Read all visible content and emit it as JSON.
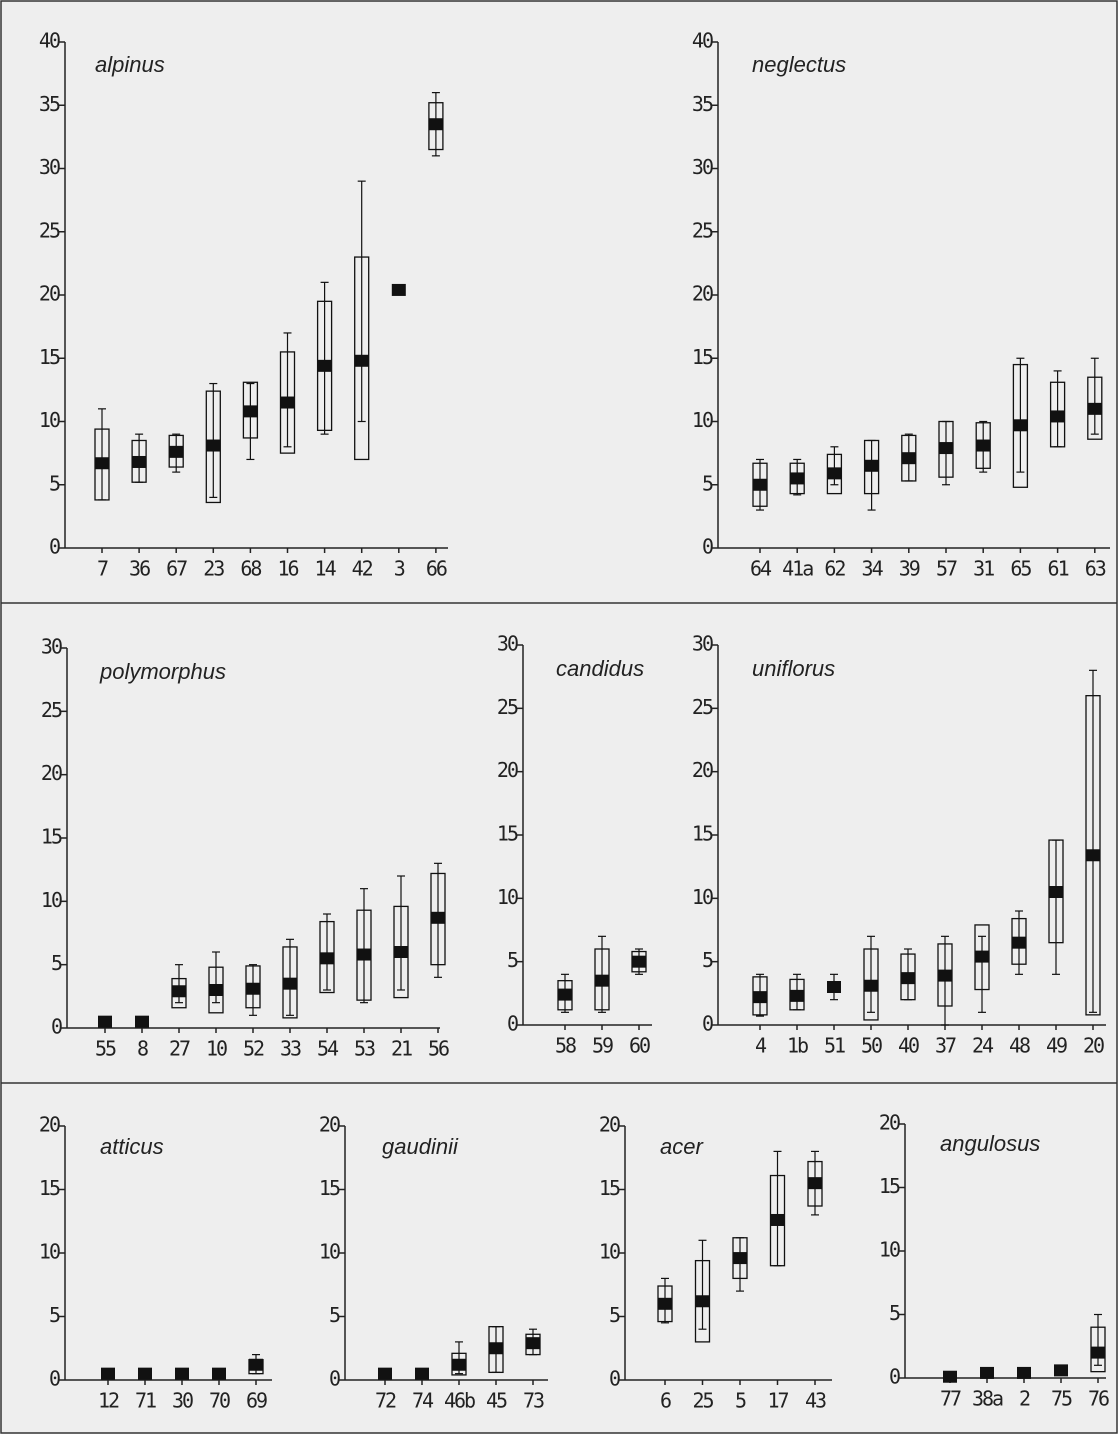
{
  "chart_data": [
    {
      "type": "box",
      "title": "alpinus",
      "categories": [
        "7",
        "36",
        "67",
        "23",
        "68",
        "16",
        "14",
        "42",
        "3",
        "66"
      ],
      "median": [
        6.7,
        6.8,
        7.6,
        8.1,
        10.8,
        11.5,
        14.4,
        14.8,
        20.4,
        33.5
      ],
      "q1": [
        3.8,
        5.2,
        6.4,
        3.6,
        8.7,
        7.5,
        9.3,
        7,
        null,
        31.5
      ],
      "q3": [
        9.4,
        8.5,
        8.9,
        12.4,
        13.1,
        15.5,
        19.5,
        23,
        null,
        35.2
      ],
      "whisker_low": [
        3.8,
        5.2,
        6,
        4,
        7,
        8,
        9,
        10,
        null,
        31
      ],
      "whisker_high": [
        11,
        9,
        9,
        13,
        13,
        17,
        21,
        29,
        null,
        36
      ],
      "ylim": [
        0,
        40
      ],
      "yticks": [
        0,
        5,
        10,
        15,
        20,
        25,
        30,
        35,
        40
      ],
      "color": "#111111"
    },
    {
      "type": "box",
      "title": "neglectus",
      "categories": [
        "64",
        "41a",
        "62",
        "34",
        "39",
        "57",
        "31",
        "65",
        "61",
        "63"
      ],
      "median": [
        5,
        5.5,
        5.9,
        6.5,
        7.1,
        7.9,
        8.1,
        9.7,
        10.4,
        11
      ],
      "q1": [
        3.3,
        4.3,
        4.3,
        4.3,
        5.3,
        5.6,
        6.3,
        4.8,
        8,
        8.6
      ],
      "q3": [
        6.7,
        6.7,
        7.4,
        8.5,
        8.9,
        10,
        9.9,
        14.5,
        13.1,
        13.5
      ],
      "whisker_low": [
        3,
        4.2,
        5,
        3,
        5.3,
        5,
        6,
        6,
        8,
        9
      ],
      "whisker_high": [
        7,
        7,
        8,
        8.5,
        9,
        10,
        10,
        15,
        14,
        15
      ],
      "ylim": [
        0,
        40
      ],
      "yticks": [
        0,
        5,
        10,
        15,
        20,
        25,
        30,
        35,
        40
      ],
      "color": "#111111"
    },
    {
      "type": "box",
      "title": "polymorphus",
      "categories": [
        "55",
        "8",
        "27",
        "10",
        "52",
        "33",
        "54",
        "53",
        "21",
        "56"
      ],
      "median": [
        0.5,
        0.5,
        2.9,
        3,
        3.1,
        3.5,
        5.5,
        5.8,
        6,
        8.7
      ],
      "q1": [
        null,
        null,
        1.6,
        1.2,
        1.6,
        0.8,
        2.8,
        2.2,
        2.4,
        5
      ],
      "q3": [
        null,
        null,
        3.9,
        4.8,
        4.9,
        6.4,
        8.4,
        9.3,
        9.6,
        12.2
      ],
      "whisker_low": [
        null,
        null,
        2,
        2,
        1,
        1,
        3,
        2,
        3,
        4
      ],
      "whisker_high": [
        null,
        null,
        5,
        6,
        5,
        7,
        9,
        11,
        12,
        13
      ],
      "ylim": [
        0,
        30
      ],
      "yticks": [
        0,
        5,
        10,
        15,
        20,
        25,
        30
      ],
      "color": "#111111"
    },
    {
      "type": "box",
      "title": "candidus",
      "categories": [
        "58",
        "59",
        "60"
      ],
      "median": [
        2.4,
        3.5,
        5
      ],
      "q1": [
        1.2,
        1.2,
        4.2
      ],
      "q3": [
        3.5,
        6,
        5.8
      ],
      "whisker_low": [
        1,
        1,
        4
      ],
      "whisker_high": [
        4,
        7,
        6
      ],
      "ylim": [
        0,
        30
      ],
      "yticks": [
        0,
        5,
        10,
        15,
        20,
        25,
        30
      ],
      "color": "#111111"
    },
    {
      "type": "box",
      "title": "uniflorus",
      "categories": [
        "4",
        "1b",
        "51",
        "50",
        "40",
        "37",
        "24",
        "48",
        "49",
        "20"
      ],
      "median": [
        2.2,
        2.3,
        3,
        3.1,
        3.7,
        3.9,
        5.4,
        6.5,
        10.5,
        13.4
      ],
      "q1": [
        0.8,
        1.2,
        null,
        0.4,
        2,
        1.5,
        2.8,
        4.8,
        6.5,
        0.8
      ],
      "q3": [
        3.8,
        3.6,
        null,
        6,
        5.6,
        6.4,
        7.9,
        8.4,
        14.6,
        26
      ],
      "whisker_low": [
        0.7,
        1.2,
        2,
        1,
        2,
        0,
        1,
        4,
        4,
        1
      ],
      "whisker_high": [
        4,
        4,
        4,
        7,
        6,
        7,
        7,
        9,
        14.6,
        28
      ],
      "ylim": [
        0,
        30
      ],
      "yticks": [
        0,
        5,
        10,
        15,
        20,
        25,
        30
      ],
      "color": "#111111"
    },
    {
      "type": "box",
      "title": "atticus",
      "categories": [
        "12",
        "71",
        "30",
        "70",
        "69"
      ],
      "median": [
        0.5,
        0.5,
        0.5,
        0.5,
        1.2
      ],
      "q1": [
        null,
        null,
        null,
        null,
        0.5
      ],
      "q3": [
        null,
        null,
        null,
        null,
        1.6
      ],
      "whisker_low": [
        null,
        null,
        null,
        null,
        0.5
      ],
      "whisker_high": [
        null,
        null,
        null,
        null,
        2
      ],
      "ylim": [
        0,
        20
      ],
      "yticks": [
        0,
        5,
        10,
        15,
        20
      ],
      "color": "#111111"
    },
    {
      "type": "box",
      "title": "gaudinii",
      "categories": [
        "72",
        "74",
        "46b",
        "45",
        "73"
      ],
      "median": [
        0.5,
        0.5,
        1.2,
        2.5,
        2.9
      ],
      "q1": [
        null,
        null,
        0.4,
        0.6,
        2
      ],
      "q3": [
        null,
        null,
        2.1,
        4.2,
        3.6
      ],
      "whisker_low": [
        null,
        null,
        0.5,
        0.6,
        2
      ],
      "whisker_high": [
        null,
        null,
        3,
        4.2,
        4
      ],
      "ylim": [
        0,
        20
      ],
      "yticks": [
        0,
        5,
        10,
        15,
        20
      ],
      "color": "#111111"
    },
    {
      "type": "box",
      "title": "acer",
      "categories": [
        "6",
        "25",
        "5",
        "17",
        "43"
      ],
      "median": [
        6,
        6.2,
        9.6,
        12.6,
        15.5
      ],
      "q1": [
        4.6,
        3,
        8,
        9,
        13.7
      ],
      "q3": [
        7.4,
        9.4,
        11.2,
        16.1,
        17.2
      ],
      "whisker_low": [
        4.5,
        4,
        7,
        9,
        13
      ],
      "whisker_high": [
        8,
        11,
        11.2,
        18,
        18
      ],
      "ylim": [
        0,
        20
      ],
      "yticks": [
        0,
        5,
        10,
        15,
        20
      ],
      "color": "#111111"
    },
    {
      "type": "box",
      "title": "angulosus",
      "categories": [
        "77",
        "38a",
        "2",
        "75",
        "76"
      ],
      "median": [
        0.1,
        0.4,
        0.4,
        0.6,
        2
      ],
      "q1": [
        null,
        null,
        null,
        null,
        0.5
      ],
      "q3": [
        null,
        null,
        null,
        null,
        4
      ],
      "whisker_low": [
        null,
        null,
        null,
        null,
        1
      ],
      "whisker_high": [
        null,
        null,
        null,
        null,
        5
      ],
      "ylim": [
        0,
        20
      ],
      "yticks": [
        0,
        5,
        10,
        15,
        20
      ],
      "color": "#111111"
    }
  ]
}
